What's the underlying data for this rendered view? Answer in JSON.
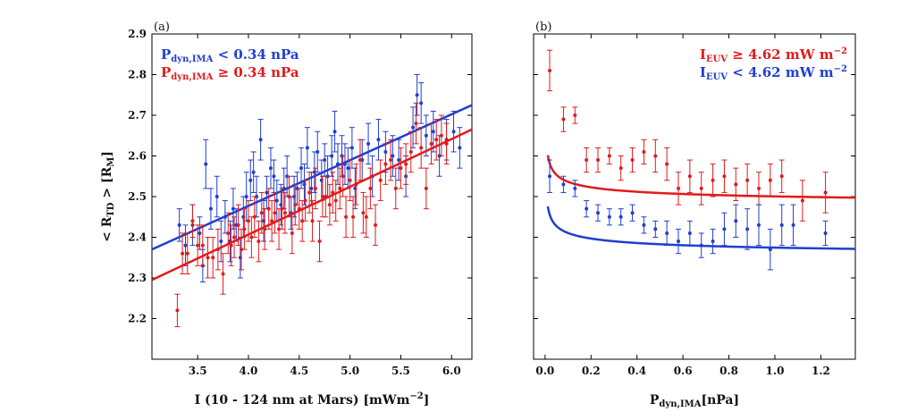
{
  "colors": {
    "blue": "#1f3fd1",
    "red": "#e01b1b"
  },
  "panels": [
    {
      "label": "(a)",
      "xlabel": {
        "main": "I (10 - 124 nm at Mars) [mWm",
        "sup": "−2",
        "end": "]"
      },
      "ylabel": {
        "lt": "< R",
        "sub": "TD",
        "mid": " > [R",
        "sub2": "M",
        "end": "]"
      },
      "legend": [
        {
          "p": "P",
          "sub": "dyn,IMA",
          "rest": " < 0.34 nPa",
          "color": "blue"
        },
        {
          "p": "P",
          "sub": "dyn,IMA",
          "rest": " ≥ 0.34 nPa",
          "color": "red"
        }
      ]
    },
    {
      "label": "(b)",
      "xlabel": {
        "main": "P",
        "sub": "dyn,IMA",
        "end": "[nPa]"
      },
      "legend": [
        {
          "p": "I",
          "sub": "EUV",
          "rest": " ≥ 4.62 mW m",
          "sup": "−2",
          "color": "red"
        },
        {
          "p": "I",
          "sub": "EUV",
          "rest": " < 4.62 mW m",
          "sup": "−2",
          "color": "blue"
        }
      ]
    }
  ],
  "chart_data": [
    {
      "type": "scatter",
      "panel": "(a)",
      "xlim": [
        3.05,
        6.2
      ],
      "ylim": [
        2.1,
        2.9
      ],
      "xticks": [
        "3.5",
        "4.0",
        "4.5",
        "5.0",
        "5.5",
        "6.0"
      ],
      "yticks": [
        "2.2",
        "2.3",
        "2.4",
        "2.5",
        "2.6",
        "2.7",
        "2.8",
        "2.9"
      ],
      "series": [
        {
          "name": "Pdyn,IMA < 0.34 nPa",
          "color": "blue",
          "fit": {
            "x": [
              3.05,
              6.2
            ],
            "y": [
              2.37,
              2.725
            ]
          },
          "points": [
            [
              3.32,
              2.43,
              0.04
            ],
            [
              3.38,
              2.38,
              0.05
            ],
            [
              3.45,
              2.43,
              0.05
            ],
            [
              3.52,
              2.41,
              0.04
            ],
            [
              3.55,
              2.33,
              0.04
            ],
            [
              3.58,
              2.58,
              0.06
            ],
            [
              3.63,
              2.47,
              0.05
            ],
            [
              3.69,
              2.5,
              0.05
            ],
            [
              3.73,
              2.39,
              0.05
            ],
            [
              3.77,
              2.45,
              0.04
            ],
            [
              3.82,
              2.39,
              0.05
            ],
            [
              3.85,
              2.47,
              0.05
            ],
            [
              3.88,
              2.43,
              0.04
            ],
            [
              3.92,
              2.35,
              0.05
            ],
            [
              3.95,
              2.45,
              0.05
            ],
            [
              3.98,
              2.5,
              0.06
            ],
            [
              4.02,
              2.54,
              0.05
            ],
            [
              4.05,
              2.56,
              0.05
            ],
            [
              4.08,
              2.5,
              0.05
            ],
            [
              4.12,
              2.64,
              0.05
            ],
            [
              4.15,
              2.44,
              0.05
            ],
            [
              4.18,
              2.51,
              0.04
            ],
            [
              4.22,
              2.57,
              0.05
            ],
            [
              4.25,
              2.55,
              0.04
            ],
            [
              4.28,
              2.49,
              0.05
            ],
            [
              4.32,
              2.48,
              0.05
            ],
            [
              4.35,
              2.52,
              0.05
            ],
            [
              4.38,
              2.55,
              0.05
            ],
            [
              4.42,
              2.46,
              0.04
            ],
            [
              4.45,
              2.5,
              0.05
            ],
            [
              4.48,
              2.52,
              0.04
            ],
            [
              4.52,
              2.57,
              0.05
            ],
            [
              4.55,
              2.53,
              0.05
            ],
            [
              4.58,
              2.62,
              0.05
            ],
            [
              4.62,
              2.52,
              0.04
            ],
            [
              4.65,
              2.56,
              0.05
            ],
            [
              4.68,
              2.61,
              0.05
            ],
            [
              4.72,
              2.54,
              0.05
            ],
            [
              4.75,
              2.59,
              0.04
            ],
            [
              4.78,
              2.55,
              0.05
            ],
            [
              4.82,
              2.6,
              0.05
            ],
            [
              4.85,
              2.66,
              0.05
            ],
            [
              4.88,
              2.58,
              0.05
            ],
            [
              4.92,
              2.6,
              0.05
            ],
            [
              4.95,
              2.58,
              0.05
            ],
            [
              4.98,
              2.57,
              0.05
            ],
            [
              5.02,
              2.62,
              0.05
            ],
            [
              5.05,
              2.52,
              0.05
            ],
            [
              5.12,
              2.59,
              0.05
            ],
            [
              5.18,
              2.63,
              0.05
            ],
            [
              5.22,
              2.55,
              0.05
            ],
            [
              5.28,
              2.64,
              0.05
            ],
            [
              5.35,
              2.61,
              0.05
            ],
            [
              5.42,
              2.6,
              0.05
            ],
            [
              5.48,
              2.59,
              0.05
            ],
            [
              5.55,
              2.55,
              0.05
            ],
            [
              5.62,
              2.67,
              0.05
            ],
            [
              5.66,
              2.75,
              0.05
            ],
            [
              5.7,
              2.73,
              0.05
            ],
            [
              5.75,
              2.65,
              0.05
            ],
            [
              5.82,
              2.66,
              0.05
            ],
            [
              5.88,
              2.6,
              0.05
            ],
            [
              5.95,
              2.64,
              0.05
            ],
            [
              6.02,
              2.66,
              0.05
            ],
            [
              6.08,
              2.62,
              0.05
            ]
          ]
        },
        {
          "name": "Pdyn,IMA ≥ 0.34 nPa",
          "color": "red",
          "fit": {
            "x": [
              3.05,
              6.2
            ],
            "y": [
              2.295,
              2.665
            ]
          },
          "points": [
            [
              3.3,
              2.22,
              0.04
            ],
            [
              3.35,
              2.36,
              0.05
            ],
            [
              3.4,
              2.36,
              0.05
            ],
            [
              3.45,
              2.44,
              0.04
            ],
            [
              3.5,
              2.38,
              0.05
            ],
            [
              3.55,
              2.38,
              0.05
            ],
            [
              3.6,
              2.35,
              0.05
            ],
            [
              3.65,
              2.35,
              0.05
            ],
            [
              3.7,
              2.37,
              0.05
            ],
            [
              3.75,
              2.31,
              0.05
            ],
            [
              3.8,
              2.41,
              0.05
            ],
            [
              3.83,
              2.38,
              0.05
            ],
            [
              3.86,
              2.4,
              0.05
            ],
            [
              3.9,
              2.43,
              0.05
            ],
            [
              3.93,
              2.37,
              0.05
            ],
            [
              3.96,
              2.42,
              0.05
            ],
            [
              4.0,
              2.44,
              0.05
            ],
            [
              4.03,
              2.4,
              0.05
            ],
            [
              4.06,
              2.45,
              0.05
            ],
            [
              4.1,
              2.39,
              0.05
            ],
            [
              4.13,
              2.46,
              0.05
            ],
            [
              4.16,
              2.42,
              0.05
            ],
            [
              4.2,
              2.47,
              0.05
            ],
            [
              4.23,
              2.44,
              0.05
            ],
            [
              4.26,
              2.46,
              0.05
            ],
            [
              4.3,
              2.42,
              0.05
            ],
            [
              4.33,
              2.47,
              0.05
            ],
            [
              4.36,
              2.46,
              0.05
            ],
            [
              4.4,
              2.5,
              0.05
            ],
            [
              4.43,
              2.41,
              0.05
            ],
            [
              4.46,
              2.48,
              0.05
            ],
            [
              4.5,
              2.47,
              0.05
            ],
            [
              4.53,
              2.44,
              0.05
            ],
            [
              4.56,
              2.49,
              0.05
            ],
            [
              4.6,
              2.51,
              0.05
            ],
            [
              4.63,
              2.44,
              0.05
            ],
            [
              4.66,
              2.52,
              0.05
            ],
            [
              4.7,
              2.39,
              0.05
            ],
            [
              4.73,
              2.5,
              0.05
            ],
            [
              4.76,
              2.5,
              0.05
            ],
            [
              4.8,
              2.48,
              0.05
            ],
            [
              4.83,
              2.51,
              0.05
            ],
            [
              4.86,
              2.49,
              0.05
            ],
            [
              4.9,
              2.52,
              0.05
            ],
            [
              4.93,
              2.55,
              0.05
            ],
            [
              4.96,
              2.45,
              0.05
            ],
            [
              5.0,
              2.54,
              0.05
            ],
            [
              5.03,
              2.45,
              0.05
            ],
            [
              5.06,
              2.53,
              0.05
            ],
            [
              5.1,
              2.59,
              0.05
            ],
            [
              5.13,
              2.46,
              0.05
            ],
            [
              5.16,
              2.45,
              0.05
            ],
            [
              5.2,
              2.52,
              0.05
            ],
            [
              5.25,
              2.43,
              0.05
            ],
            [
              5.3,
              2.54,
              0.05
            ],
            [
              5.35,
              2.58,
              0.05
            ],
            [
              5.4,
              2.59,
              0.05
            ],
            [
              5.45,
              2.52,
              0.05
            ],
            [
              5.5,
              2.57,
              0.05
            ],
            [
              5.55,
              2.58,
              0.05
            ],
            [
              5.6,
              2.61,
              0.05
            ],
            [
              5.65,
              2.68,
              0.05
            ],
            [
              5.7,
              2.62,
              0.05
            ],
            [
              5.75,
              2.52,
              0.05
            ],
            [
              5.8,
              2.63,
              0.05
            ],
            [
              5.85,
              2.64,
              0.05
            ],
            [
              5.9,
              2.65,
              0.05
            ],
            [
              5.95,
              2.63,
              0.05
            ]
          ]
        }
      ]
    },
    {
      "type": "scatter",
      "panel": "(b)",
      "xlim": [
        -0.05,
        1.35
      ],
      "ylim": [
        2.1,
        2.9
      ],
      "xticks": [
        "0.0",
        "0.2",
        "0.4",
        "0.6",
        "0.8",
        "1.0",
        "1.2"
      ],
      "series": [
        {
          "name": "IEUV ≥ 4.62 mW m−2",
          "color": "red",
          "fit": {
            "x0": 0.012,
            "x1": 1.35,
            "a": 2.466,
            "b": 0.0345,
            "c": 0.31
          },
          "points": [
            [
              0.02,
              2.81,
              0.05
            ],
            [
              0.08,
              2.69,
              0.03
            ],
            [
              0.13,
              2.7,
              0.02
            ],
            [
              0.18,
              2.59,
              0.03
            ],
            [
              0.23,
              2.59,
              0.03
            ],
            [
              0.28,
              2.6,
              0.02
            ],
            [
              0.33,
              2.57,
              0.03
            ],
            [
              0.38,
              2.59,
              0.03
            ],
            [
              0.43,
              2.61,
              0.03
            ],
            [
              0.48,
              2.6,
              0.04
            ],
            [
              0.53,
              2.58,
              0.04
            ],
            [
              0.58,
              2.52,
              0.04
            ],
            [
              0.63,
              2.55,
              0.04
            ],
            [
              0.68,
              2.52,
              0.04
            ],
            [
              0.73,
              2.54,
              0.04
            ],
            [
              0.78,
              2.55,
              0.04
            ],
            [
              0.83,
              2.53,
              0.04
            ],
            [
              0.88,
              2.54,
              0.04
            ],
            [
              0.93,
              2.52,
              0.04
            ],
            [
              0.98,
              2.54,
              0.04
            ],
            [
              1.03,
              2.55,
              0.04
            ],
            [
              1.12,
              2.49,
              0.05
            ],
            [
              1.22,
              2.51,
              0.05
            ]
          ]
        },
        {
          "name": "IEUV < 4.62 mW m−2",
          "color": "blue",
          "fit": {
            "x0": 0.012,
            "x1": 1.35,
            "a": 2.34,
            "b": 0.0345,
            "c": 0.31
          },
          "points": [
            [
              0.02,
              2.55,
              0.04
            ],
            [
              0.08,
              2.53,
              0.02
            ],
            [
              0.13,
              2.52,
              0.02
            ],
            [
              0.18,
              2.47,
              0.02
            ],
            [
              0.23,
              2.46,
              0.02
            ],
            [
              0.28,
              2.45,
              0.02
            ],
            [
              0.33,
              2.45,
              0.02
            ],
            [
              0.38,
              2.46,
              0.02
            ],
            [
              0.43,
              2.43,
              0.02
            ],
            [
              0.48,
              2.42,
              0.02
            ],
            [
              0.53,
              2.41,
              0.03
            ],
            [
              0.58,
              2.39,
              0.03
            ],
            [
              0.63,
              2.41,
              0.03
            ],
            [
              0.68,
              2.38,
              0.03
            ],
            [
              0.73,
              2.39,
              0.03
            ],
            [
              0.78,
              2.42,
              0.04
            ],
            [
              0.83,
              2.44,
              0.04
            ],
            [
              0.88,
              2.42,
              0.05
            ],
            [
              0.93,
              2.43,
              0.05
            ],
            [
              0.98,
              2.37,
              0.05
            ],
            [
              1.03,
              2.43,
              0.05
            ],
            [
              1.08,
              2.43,
              0.05
            ],
            [
              1.22,
              2.41,
              0.03
            ]
          ]
        }
      ]
    }
  ]
}
